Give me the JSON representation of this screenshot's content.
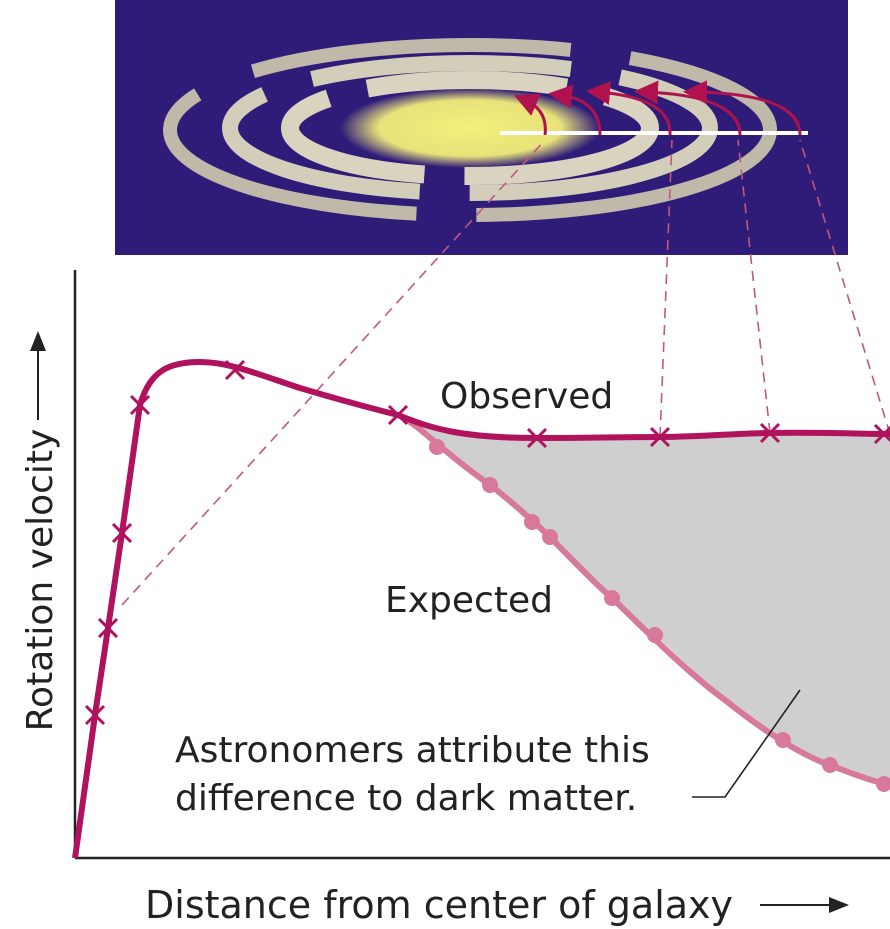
{
  "labels": {
    "observed": "Observed",
    "expected": "Expected",
    "annotation": [
      "Astronomers attribute this",
      "difference to dark matter."
    ],
    "y_axis": "Rotation velocity",
    "x_axis": "Distance from center of galaxy"
  }
}
